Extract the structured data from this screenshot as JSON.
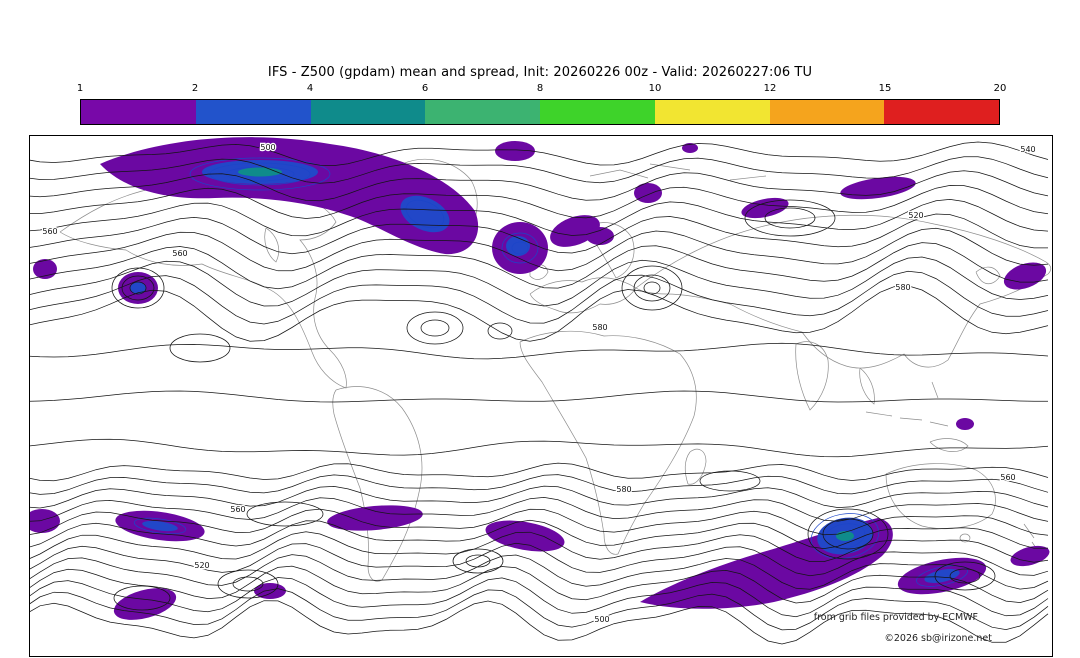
{
  "title": "IFS - Z500 (gpdam) mean and spread, Init: 20260226 00z - Valid: 20260227:06 TU",
  "colorbar": {
    "ticks": [
      "1",
      "2",
      "4",
      "6",
      "8",
      "10",
      "12",
      "15",
      "20"
    ],
    "colors": [
      "#7808a8",
      "#2253cb",
      "#0f8b8b",
      "#3cb371",
      "#3ed32a",
      "#f2e531",
      "#f5a41d",
      "#df1f1f"
    ]
  },
  "map": {
    "contour_labels": [
      "540",
      "520",
      "560",
      "580",
      "580",
      "500",
      "560",
      "580",
      "560",
      "520",
      "500",
      "560"
    ],
    "credit_line1": "from grib files provided by ECMWF",
    "credit_line2": "©2026 sb@irizone.net"
  },
  "chart_data": {
    "type": "heatmap",
    "subtype": "filled-contour world map: ensemble spread shading with mean Z500 contour lines",
    "title": "IFS - Z500 (gpdam) mean and spread, Init: 20260226 00z - Valid: 20260227:06 TU",
    "model": "IFS",
    "variable": "Z500",
    "units": "gpdam",
    "init": "20260226 00z",
    "valid": "20260227:06 TU",
    "colorbar_levels": [
      1,
      2,
      4,
      6,
      8,
      10,
      12,
      15,
      20
    ],
    "colorbar_colors": [
      "#7808a8",
      "#2253cb",
      "#0f8b8b",
      "#3cb371",
      "#3ed32a",
      "#f2e531",
      "#f5a41d",
      "#df1f1f"
    ],
    "mean_contour_labels_visible": [
      500,
      520,
      540,
      560,
      580
    ],
    "spread_shading_observed": "spread values mostly 1-4 gpdam (purple with blue cores) over Arctic Canada/Greenland, North Atlantic/Scandinavia, North Pacific, and along the Southern Ocean storm track",
    "legend_position": "horizontal colorbar above map",
    "grid": false,
    "credits": [
      "from grib files provided by ECMWF",
      "©2026 sb@irizone.net"
    ]
  }
}
